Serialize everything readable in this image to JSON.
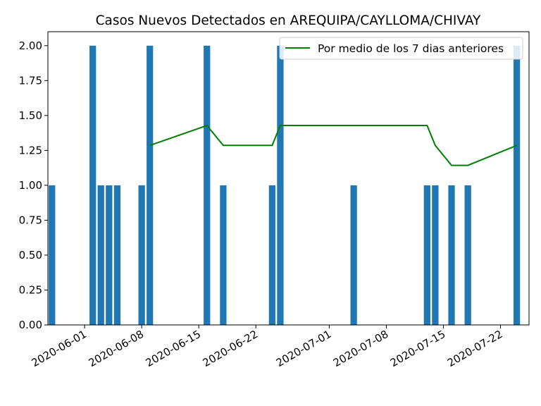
{
  "chart_data": {
    "type": "bar",
    "title": "Casos Nuevos Detectados en AREQUIPA/CAYLLOMA/CHIVAY",
    "xlabel": "",
    "ylabel": "",
    "ylim": [
      0,
      2.1
    ],
    "xlim": [
      "2020-05-28",
      "2020-07-25"
    ],
    "y_ticks": [
      "0.00",
      "0.25",
      "0.50",
      "0.75",
      "1.00",
      "1.25",
      "1.50",
      "1.75",
      "2.00"
    ],
    "x_ticks": [
      "2020-06-01",
      "2020-06-08",
      "2020-06-15",
      "2020-06-22",
      "2020-07-01",
      "2020-07-08",
      "2020-07-15",
      "2020-07-22"
    ],
    "bar_color": "#1f77b4",
    "line_color": "#008000",
    "legend_position": "top-right",
    "bars": [
      {
        "date": "2020-05-28",
        "value": 1
      },
      {
        "date": "2020-06-02",
        "value": 2
      },
      {
        "date": "2020-06-03",
        "value": 1
      },
      {
        "date": "2020-06-04",
        "value": 1
      },
      {
        "date": "2020-06-05",
        "value": 1
      },
      {
        "date": "2020-06-08",
        "value": 1
      },
      {
        "date": "2020-06-09",
        "value": 2
      },
      {
        "date": "2020-06-16",
        "value": 2
      },
      {
        "date": "2020-06-18",
        "value": 1
      },
      {
        "date": "2020-06-24",
        "value": 1
      },
      {
        "date": "2020-06-25",
        "value": 2
      },
      {
        "date": "2020-07-04",
        "value": 1
      },
      {
        "date": "2020-07-13",
        "value": 1
      },
      {
        "date": "2020-07-14",
        "value": 1
      },
      {
        "date": "2020-07-16",
        "value": 1
      },
      {
        "date": "2020-07-18",
        "value": 1
      },
      {
        "date": "2020-07-24",
        "value": 2
      }
    ],
    "series": [
      {
        "name": "Por medio de los 7 dias anteriores",
        "type": "line",
        "points": [
          {
            "date": "2020-06-09",
            "value": 1.2857
          },
          {
            "date": "2020-06-16",
            "value": 1.4286
          },
          {
            "date": "2020-06-18",
            "value": 1.2857
          },
          {
            "date": "2020-06-24",
            "value": 1.2857
          },
          {
            "date": "2020-06-25",
            "value": 1.4286
          },
          {
            "date": "2020-07-04",
            "value": 1.4286
          },
          {
            "date": "2020-07-13",
            "value": 1.4286
          },
          {
            "date": "2020-07-14",
            "value": 1.2857
          },
          {
            "date": "2020-07-16",
            "value": 1.1429
          },
          {
            "date": "2020-07-18",
            "value": 1.1429
          },
          {
            "date": "2020-07-24",
            "value": 1.2857
          }
        ]
      }
    ]
  }
}
